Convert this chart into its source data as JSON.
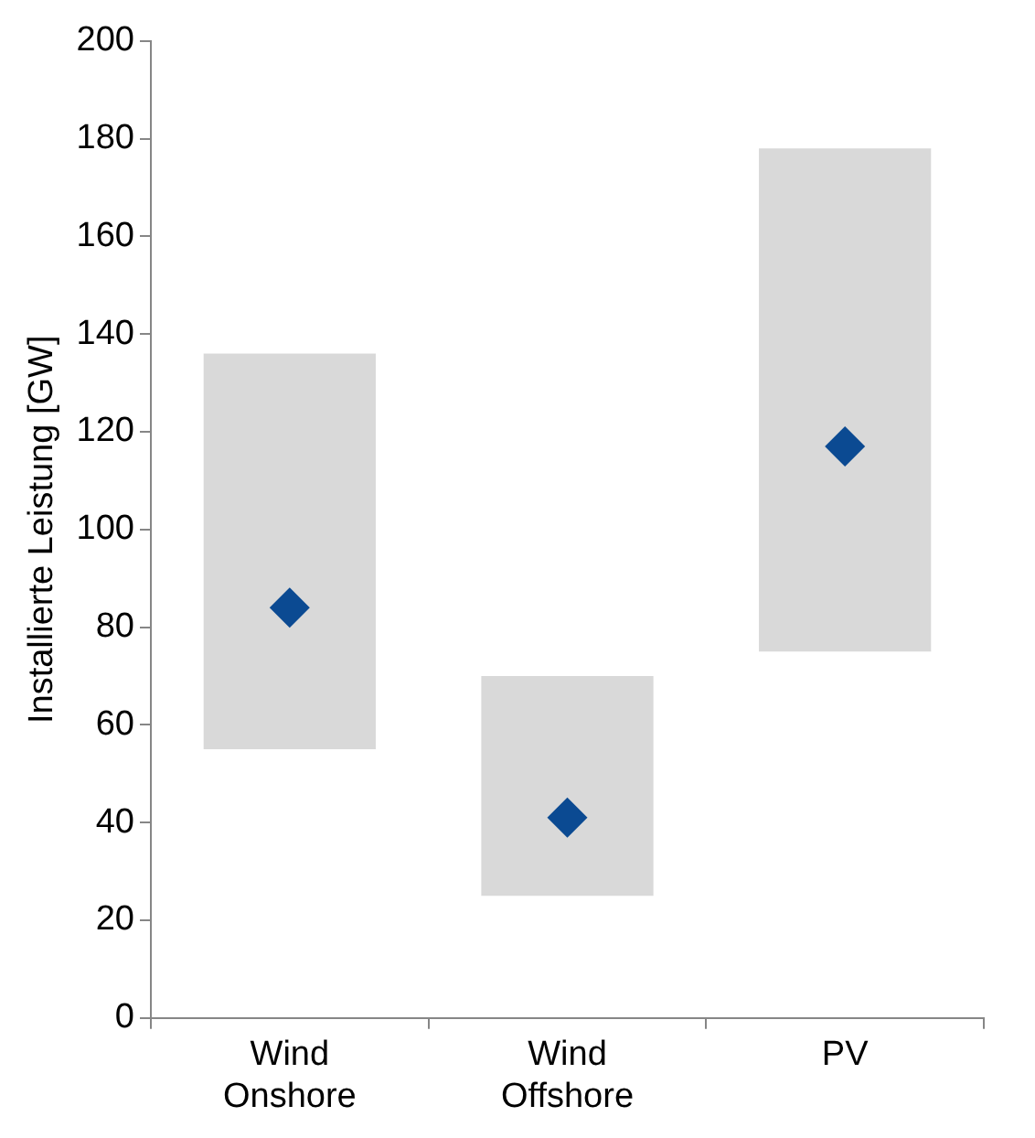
{
  "chart_data": {
    "type": "bar",
    "ylabel": "Installierte Leistung [GW]",
    "categories": [
      "Wind Onshore",
      "Wind Offshore",
      "PV"
    ],
    "series": [
      {
        "color": "#d9d9d9",
        "values": [
          81,
          45,
          103
        ],
        "base": [
          55,
          25,
          75
        ]
      },
      {
        "type": "scatter",
        "color": "#0b4a92",
        "x": [
          "Wind Onshore",
          "Wind Offshore",
          "PV"
        ],
        "values": [
          84,
          41,
          117
        ],
        "marker": "diamond"
      }
    ],
    "ylim": [
      0,
      200
    ],
    "yticks": [
      0,
      20,
      40,
      60,
      80,
      100,
      120,
      140,
      160,
      180,
      200
    ],
    "grid": false,
    "legend": false
  }
}
